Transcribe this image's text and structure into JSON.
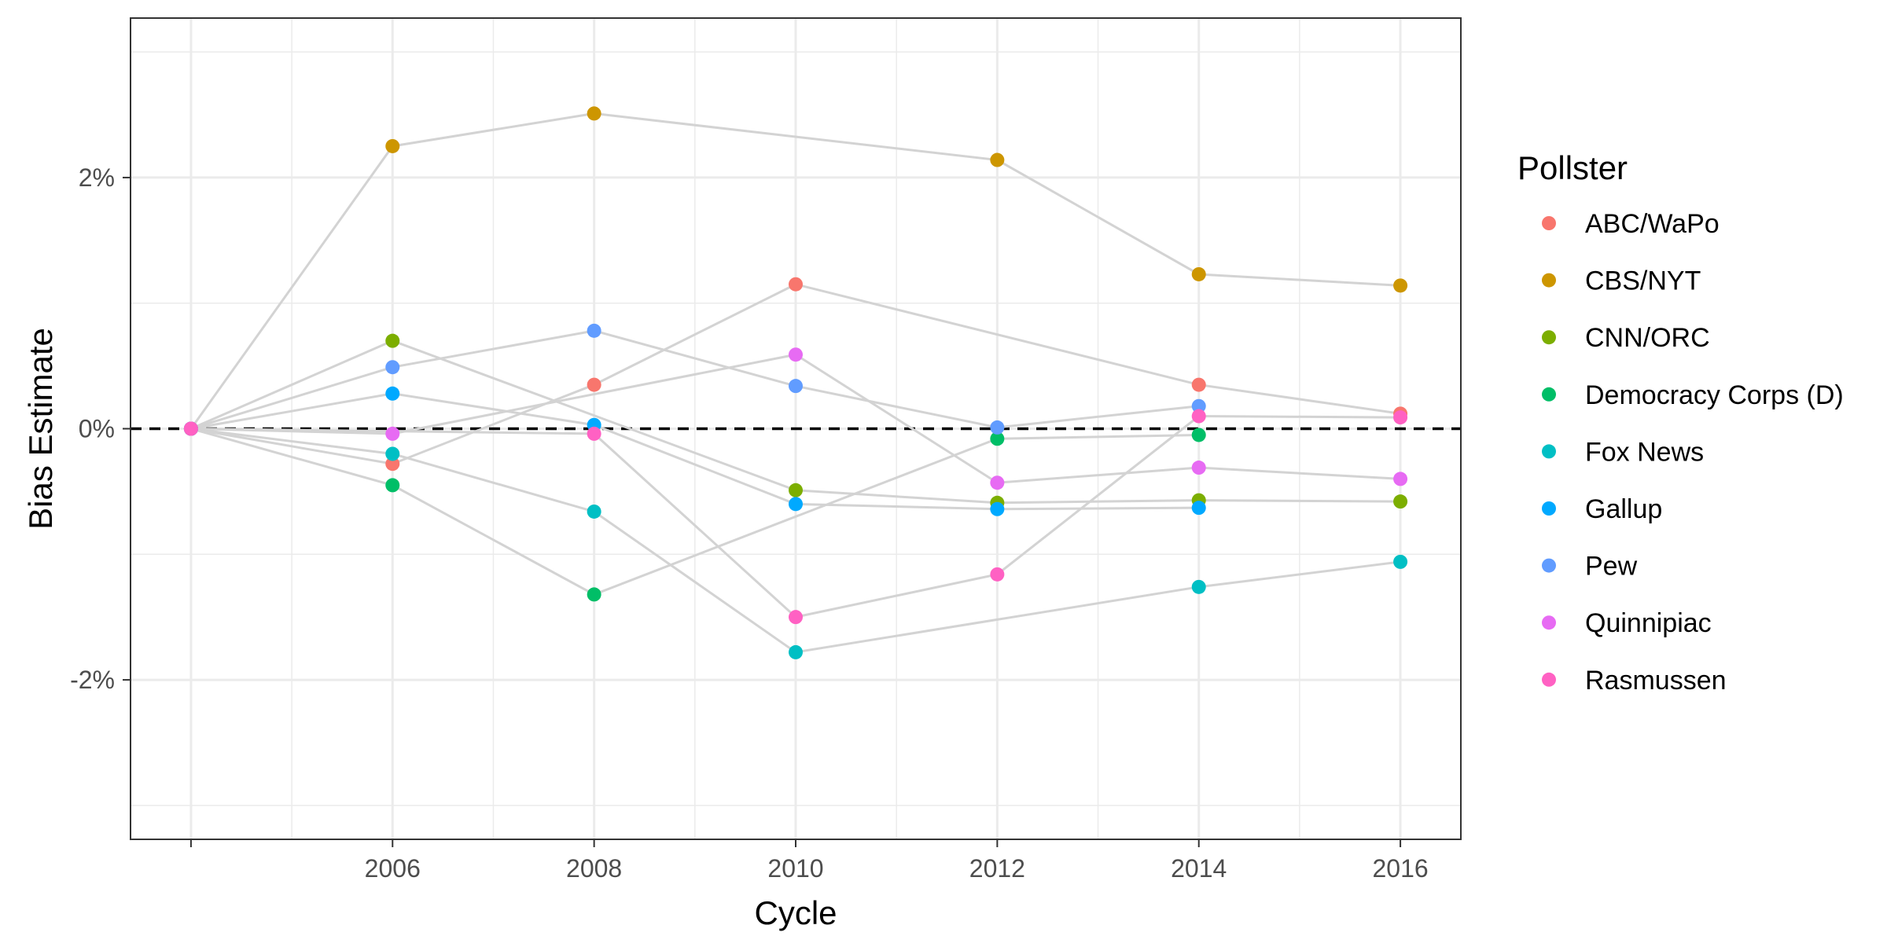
{
  "chart_data": {
    "type": "scatter",
    "xlabel": "Cycle",
    "ylabel": "Bias Estimate",
    "x_ticks": [
      2006,
      2008,
      2010,
      2012,
      2014,
      2016
    ],
    "x_tick_labels": [
      "2006",
      "2008",
      "2010",
      "2012",
      "2014",
      "2016"
    ],
    "xlim": [
      2003.4,
      2016.6
    ],
    "y_ticks": [
      2,
      0,
      -2
    ],
    "y_tick_labels": [
      "2%",
      "0%",
      "-2%"
    ],
    "ylim": [
      -3.27,
      3.27
    ],
    "reference_line": {
      "y": 0,
      "style": "dashed"
    },
    "grid": true,
    "legend_title": "Pollster",
    "legend_position": "right",
    "series": [
      {
        "name": "ABC/WaPo",
        "color": "#F8766D",
        "points": [
          [
            2004,
            0
          ],
          [
            2006,
            -0.28
          ],
          [
            2008,
            0.35
          ],
          [
            2010,
            1.15
          ],
          [
            2014,
            0.35
          ],
          [
            2016,
            0.12
          ]
        ]
      },
      {
        "name": "CBS/NYT",
        "color": "#CD9600",
        "points": [
          [
            2004,
            0
          ],
          [
            2006,
            2.25
          ],
          [
            2008,
            2.51
          ],
          [
            2012,
            2.14
          ],
          [
            2014,
            1.23
          ],
          [
            2016,
            1.14
          ]
        ]
      },
      {
        "name": "CNN/ORC",
        "color": "#7CAE00",
        "points": [
          [
            2004,
            0
          ],
          [
            2006,
            0.7
          ],
          [
            2010,
            -0.49
          ],
          [
            2012,
            -0.59
          ],
          [
            2014,
            -0.57
          ],
          [
            2016,
            -0.58
          ]
        ]
      },
      {
        "name": "Democracy Corps (D)",
        "color": "#00BE67",
        "points": [
          [
            2004,
            0
          ],
          [
            2006,
            -0.45
          ],
          [
            2008,
            -1.32
          ],
          [
            2012,
            -0.08
          ],
          [
            2014,
            -0.05
          ]
        ]
      },
      {
        "name": "Fox News",
        "color": "#00BFC4",
        "points": [
          [
            2004,
            0
          ],
          [
            2006,
            -0.2
          ],
          [
            2008,
            -0.66
          ],
          [
            2010,
            -1.78
          ],
          [
            2014,
            -1.26
          ],
          [
            2016,
            -1.06
          ]
        ]
      },
      {
        "name": "Gallup",
        "color": "#00A9FF",
        "points": [
          [
            2004,
            0
          ],
          [
            2006,
            0.28
          ],
          [
            2008,
            0.03
          ],
          [
            2010,
            -0.6
          ],
          [
            2012,
            -0.64
          ],
          [
            2014,
            -0.63
          ]
        ]
      },
      {
        "name": "Pew",
        "color": "#619CFF",
        "points": [
          [
            2004,
            0
          ],
          [
            2006,
            0.49
          ],
          [
            2008,
            0.78
          ],
          [
            2010,
            0.34
          ],
          [
            2012,
            0.01
          ],
          [
            2014,
            0.18
          ]
        ]
      },
      {
        "name": "Quinnipiac",
        "color": "#E76BF3",
        "points": [
          [
            2004,
            0
          ],
          [
            2006,
            -0.04
          ],
          [
            2010,
            0.59
          ],
          [
            2012,
            -0.43
          ],
          [
            2014,
            -0.31
          ],
          [
            2016,
            -0.4
          ]
        ]
      },
      {
        "name": "Rasmussen",
        "color": "#FF61C3",
        "points": [
          [
            2004,
            0
          ],
          [
            2008,
            -0.04
          ],
          [
            2010,
            -1.5
          ],
          [
            2012,
            -1.16
          ],
          [
            2014,
            0.1
          ],
          [
            2016,
            0.09
          ]
        ]
      }
    ]
  }
}
